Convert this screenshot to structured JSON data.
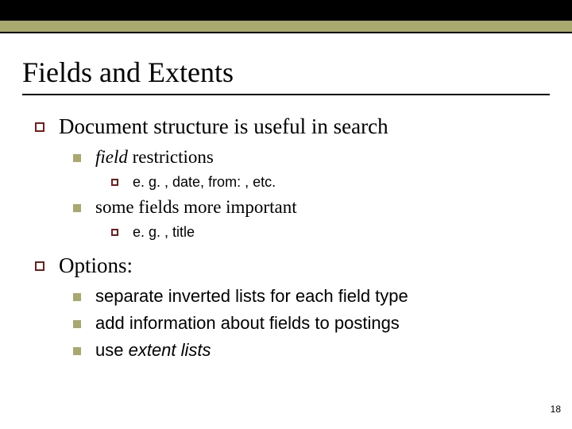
{
  "colors": {
    "top_dark": "#000000",
    "top_olive": "#a9a96f",
    "open_square_border": "#7a1c1c",
    "filled_square": "#a9a96f",
    "text": "#000000",
    "background": "#ffffff"
  },
  "typography": {
    "title_font": "Times New Roman",
    "body_serif": "Times New Roman",
    "body_sans": "Arial",
    "title_size_pt": 36,
    "l1_size_pt": 27,
    "l2_size_pt": 23,
    "l2_sans_size_pt": 22,
    "l3_size_pt": 18
  },
  "title": "Fields and Extents",
  "bullets": {
    "b1": "Document structure is useful in search",
    "b1_1_prefix": "field",
    "b1_1_rest": " restrictions",
    "b1_1_1": "e. g. , date, from: , etc.",
    "b1_2": "some fields more important",
    "b1_2_1": "e. g. , title",
    "b2": "Options:",
    "b2_1": "separate inverted lists for each field type",
    "b2_2": "add information about fields to postings",
    "b2_3_prefix": "use ",
    "b2_3_italic": "extent lists"
  },
  "page_number": "18"
}
